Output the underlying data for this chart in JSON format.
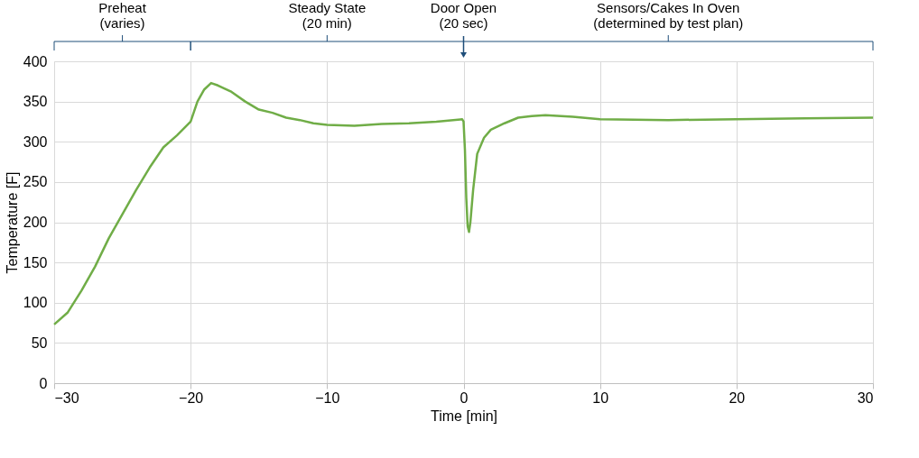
{
  "chart_data": {
    "type": "line",
    "xlabel": "Time [min]",
    "ylabel": "Temperature [F]",
    "x": [
      -30,
      -29,
      -28,
      -27,
      -26,
      -25,
      -24,
      -23,
      -22,
      -21,
      -20,
      -19.5,
      -19,
      -18.5,
      -18,
      -17,
      -16,
      -15,
      -14,
      -13,
      -12,
      -11,
      -10,
      -8,
      -6,
      -4,
      -2,
      -0.1,
      0,
      0.1,
      0.2,
      0.3,
      0.4,
      0.5,
      0.7,
      1,
      1.5,
      2,
      3,
      4,
      5,
      6,
      8,
      10,
      15,
      20,
      25,
      30
    ],
    "series": [
      {
        "color": "#70ad47",
        "values": [
          73,
          88,
          115,
          145,
          180,
          210,
          240,
          268,
          293,
          308,
          325,
          350,
          365,
          373,
          370,
          362,
          350,
          340,
          336,
          330,
          327,
          323,
          321,
          320,
          322,
          323,
          325,
          328,
          325,
          290,
          230,
          195,
          188,
          200,
          240,
          285,
          305,
          315,
          323,
          330,
          332,
          333,
          331,
          328,
          327,
          328,
          329,
          330
        ]
      }
    ],
    "xlim": [
      -30,
      30
    ],
    "xticks": [
      -30,
      -20,
      -10,
      0,
      10,
      20,
      30
    ],
    "ylim": [
      0,
      400
    ],
    "yticks": [
      0,
      50,
      100,
      150,
      200,
      250,
      300,
      350,
      400
    ],
    "grid": true,
    "line_style": "solid",
    "marker": "none",
    "annotations": [
      {
        "text": "Preheat\n(varies)",
        "x": -25
      },
      {
        "text": "Steady State\n(20 min)",
        "x": -10
      },
      {
        "text": "Sensors/Cakes In Oven\n(determined by test plan)",
        "x": 15
      }
    ],
    "ref_lines": [
      {
        "axis": "x",
        "value": 0,
        "label": "Door Open\n(20 sec)",
        "color": "#1f4e79"
      }
    ]
  }
}
